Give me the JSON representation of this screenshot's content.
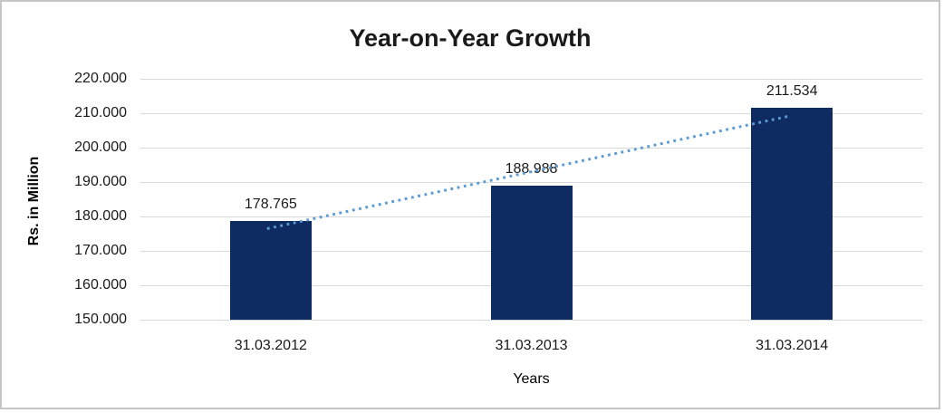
{
  "chart_data": {
    "type": "bar",
    "title": "Year-on-Year Growth",
    "xlabel": "Years",
    "ylabel": "Rs. in Million",
    "categories": [
      "31.03.2012",
      "31.03.2013",
      "31.03.2014"
    ],
    "values": [
      178.765,
      188.988,
      211.534
    ],
    "data_labels": [
      "178.765",
      "188.988",
      "211.534"
    ],
    "ylim": [
      150,
      220
    ],
    "ytick_step": 10,
    "ytick_labels": [
      "150.000",
      "160.000",
      "170.000",
      "180.000",
      "190.000",
      "200.000",
      "210.000",
      "220.000"
    ],
    "grid": true,
    "legend": false,
    "trendline": {
      "type": "linear",
      "style": "dotted"
    }
  },
  "colors": {
    "bar": "#0e2b62",
    "trendline": "#5b9bd5",
    "gridline": "#d9d9d9",
    "title_text": "#1a1a1a",
    "frame_border": "#c6c6c6"
  }
}
